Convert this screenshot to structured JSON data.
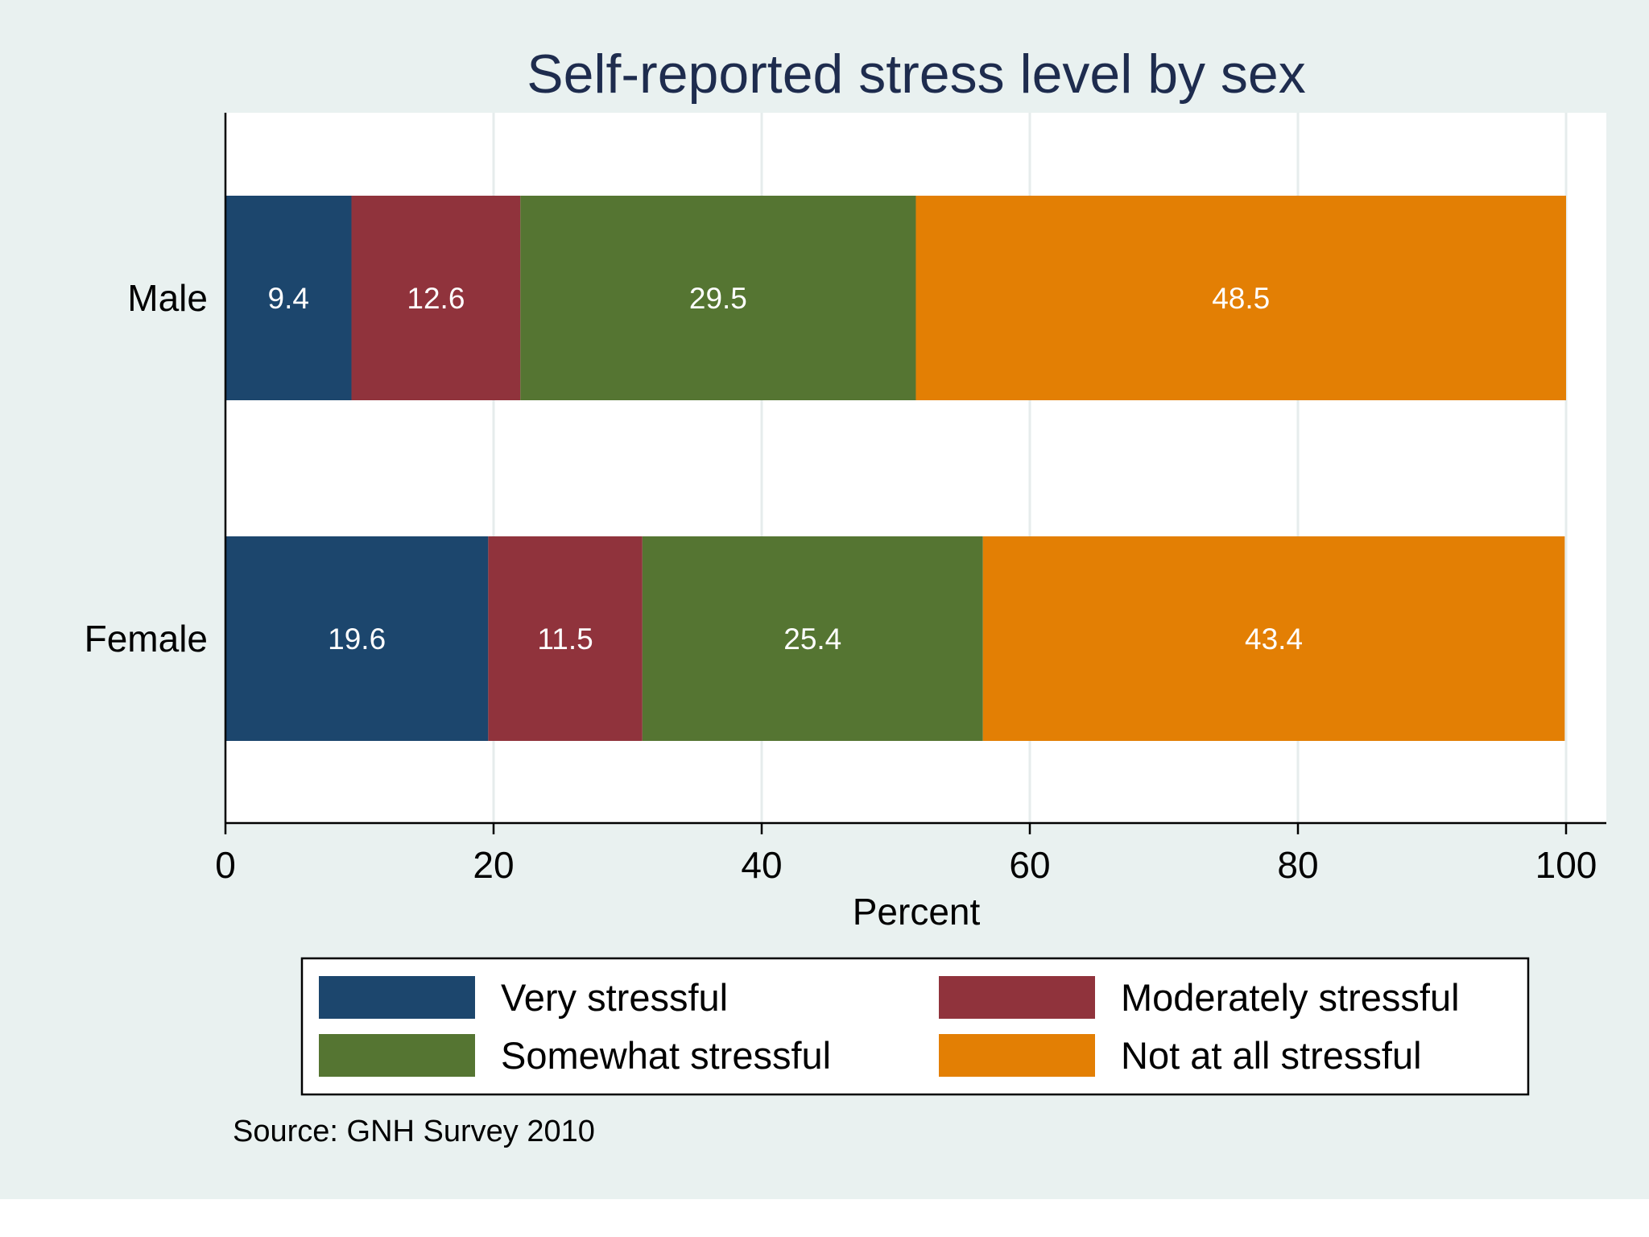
{
  "chart_data": {
    "type": "bar",
    "orientation": "horizontal",
    "stacked": true,
    "title": "Self-reported stress level by sex",
    "xlabel": "Percent",
    "ylabel": "",
    "xlim": [
      0,
      100
    ],
    "x_ticks": [
      0,
      20,
      40,
      60,
      80,
      100
    ],
    "grid": true,
    "categories": [
      "Male",
      "Female"
    ],
    "series": [
      {
        "name": "Very stressful",
        "color": "#1c466d",
        "values": [
          9.4,
          19.6
        ]
      },
      {
        "name": "Moderately stressful",
        "color": "#90333c",
        "values": [
          12.6,
          11.5
        ]
      },
      {
        "name": "Somewhat stressful",
        "color": "#557532",
        "values": [
          29.5,
          25.4
        ]
      },
      {
        "name": "Not at all stressful",
        "color": "#e37f04",
        "values": [
          48.5,
          43.4
        ]
      }
    ],
    "legend_position": "bottom",
    "note": "Source: GNH Survey 2010"
  }
}
